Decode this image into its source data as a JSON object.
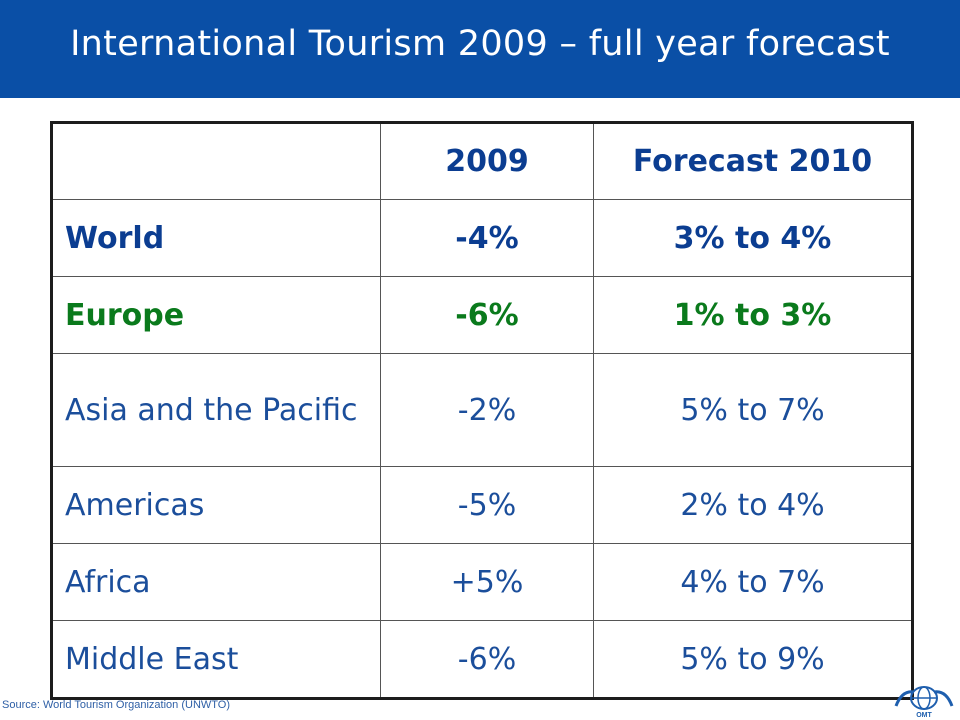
{
  "header": {
    "title": "International Tourism 2009 – full year forecast"
  },
  "table": {
    "columns": [
      "",
      "2009",
      "Forecast 2010"
    ],
    "rows": [
      {
        "region": "World",
        "y2009": "-4%",
        "f2010": "3% to 4%"
      },
      {
        "region": "Europe",
        "y2009": "-6%",
        "f2010": "1% to 3%"
      },
      {
        "region": "Asia and the Pacific",
        "y2009": "-2%",
        "f2010": "5% to 7%"
      },
      {
        "region": "Americas",
        "y2009": "-5%",
        "f2010": "2% to 4%"
      },
      {
        "region": "Africa",
        "y2009": "+5%",
        "f2010": "4% to 7%"
      },
      {
        "region": "Middle East",
        "y2009": "-6%",
        "f2010": "5% to 9%"
      }
    ]
  },
  "footer": {
    "source": "Source: World Tourism Organization (UNWTO)",
    "logo_text": "OMT"
  },
  "colors": {
    "header_bg": "#0a4fa6",
    "world": "#0b3d91",
    "europe": "#0a7a1c",
    "regions": "#1b4e9b"
  }
}
